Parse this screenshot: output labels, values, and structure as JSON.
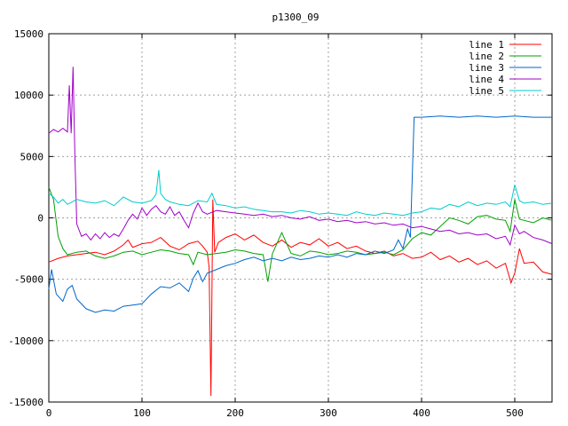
{
  "chart_data": {
    "type": "line",
    "title": "p1300_09",
    "xlabel": "",
    "ylabel": "",
    "xlim": [
      0,
      540
    ],
    "ylim": [
      -15000,
      15000
    ],
    "xticks": [
      0,
      100,
      200,
      300,
      400,
      500
    ],
    "yticks": [
      -15000,
      -10000,
      -5000,
      0,
      5000,
      10000,
      15000
    ],
    "grid": true,
    "legend_position": "top-right",
    "series": [
      {
        "name": "line 1",
        "color": "#ff0000",
        "points": [
          [
            0,
            -3600
          ],
          [
            10,
            -3300
          ],
          [
            20,
            -3100
          ],
          [
            30,
            -3000
          ],
          [
            40,
            -2900
          ],
          [
            50,
            -2800
          ],
          [
            60,
            -3000
          ],
          [
            70,
            -2700
          ],
          [
            80,
            -2200
          ],
          [
            85,
            -1800
          ],
          [
            90,
            -2400
          ],
          [
            100,
            -2100
          ],
          [
            110,
            -2000
          ],
          [
            120,
            -1600
          ],
          [
            130,
            -2300
          ],
          [
            140,
            -2600
          ],
          [
            150,
            -2100
          ],
          [
            160,
            -1900
          ],
          [
            165,
            -2300
          ],
          [
            170,
            -2800
          ],
          [
            172,
            -4000
          ],
          [
            174,
            -14500
          ],
          [
            176,
            1500
          ],
          [
            178,
            -2800
          ],
          [
            182,
            -2000
          ],
          [
            190,
            -1600
          ],
          [
            200,
            -1300
          ],
          [
            210,
            -1800
          ],
          [
            220,
            -1400
          ],
          [
            230,
            -2000
          ],
          [
            240,
            -2300
          ],
          [
            250,
            -1800
          ],
          [
            260,
            -2400
          ],
          [
            270,
            -2000
          ],
          [
            280,
            -2200
          ],
          [
            290,
            -1700
          ],
          [
            300,
            -2300
          ],
          [
            310,
            -2000
          ],
          [
            320,
            -2500
          ],
          [
            330,
            -2300
          ],
          [
            340,
            -2700
          ],
          [
            350,
            -2900
          ],
          [
            360,
            -2700
          ],
          [
            370,
            -3100
          ],
          [
            380,
            -2900
          ],
          [
            390,
            -3300
          ],
          [
            400,
            -3200
          ],
          [
            410,
            -2800
          ],
          [
            420,
            -3400
          ],
          [
            430,
            -3100
          ],
          [
            440,
            -3600
          ],
          [
            450,
            -3300
          ],
          [
            460,
            -3800
          ],
          [
            470,
            -3500
          ],
          [
            480,
            -4100
          ],
          [
            490,
            -3700
          ],
          [
            496,
            -5300
          ],
          [
            500,
            -4500
          ],
          [
            505,
            -2500
          ],
          [
            510,
            -3700
          ],
          [
            520,
            -3600
          ],
          [
            530,
            -4400
          ],
          [
            540,
            -4600
          ]
        ]
      },
      {
        "name": "line 2",
        "color": "#00a000",
        "points": [
          [
            0,
            2500
          ],
          [
            5,
            1500
          ],
          [
            10,
            -1500
          ],
          [
            15,
            -2500
          ],
          [
            20,
            -3000
          ],
          [
            30,
            -2800
          ],
          [
            40,
            -2700
          ],
          [
            50,
            -3100
          ],
          [
            60,
            -3300
          ],
          [
            70,
            -3100
          ],
          [
            80,
            -2800
          ],
          [
            90,
            -2700
          ],
          [
            100,
            -3000
          ],
          [
            110,
            -2800
          ],
          [
            120,
            -2600
          ],
          [
            130,
            -2700
          ],
          [
            140,
            -2900
          ],
          [
            150,
            -3000
          ],
          [
            155,
            -3800
          ],
          [
            160,
            -2800
          ],
          [
            170,
            -3000
          ],
          [
            180,
            -2900
          ],
          [
            190,
            -2800
          ],
          [
            200,
            -2600
          ],
          [
            210,
            -2700
          ],
          [
            220,
            -2900
          ],
          [
            230,
            -3000
          ],
          [
            235,
            -5200
          ],
          [
            240,
            -2900
          ],
          [
            250,
            -1200
          ],
          [
            260,
            -2900
          ],
          [
            270,
            -3100
          ],
          [
            280,
            -2700
          ],
          [
            290,
            -2800
          ],
          [
            300,
            -3000
          ],
          [
            310,
            -2900
          ],
          [
            320,
            -2700
          ],
          [
            330,
            -2800
          ],
          [
            340,
            -3000
          ],
          [
            350,
            -2900
          ],
          [
            360,
            -2800
          ],
          [
            370,
            -3000
          ],
          [
            380,
            -2600
          ],
          [
            390,
            -1700
          ],
          [
            400,
            -1200
          ],
          [
            410,
            -1400
          ],
          [
            420,
            -700
          ],
          [
            430,
            0
          ],
          [
            440,
            -200
          ],
          [
            450,
            -500
          ],
          [
            460,
            100
          ],
          [
            470,
            200
          ],
          [
            480,
            -100
          ],
          [
            490,
            -200
          ],
          [
            495,
            -1100
          ],
          [
            500,
            1500
          ],
          [
            505,
            -100
          ],
          [
            510,
            -200
          ],
          [
            520,
            -400
          ],
          [
            530,
            0
          ],
          [
            540,
            -200
          ]
        ]
      },
      {
        "name": "line 3",
        "color": "#0066cc",
        "points": [
          [
            0,
            -5800
          ],
          [
            3,
            -4200
          ],
          [
            8,
            -6200
          ],
          [
            15,
            -6800
          ],
          [
            20,
            -5800
          ],
          [
            25,
            -5500
          ],
          [
            30,
            -6600
          ],
          [
            40,
            -7400
          ],
          [
            50,
            -7700
          ],
          [
            60,
            -7500
          ],
          [
            70,
            -7600
          ],
          [
            80,
            -7200
          ],
          [
            90,
            -7100
          ],
          [
            100,
            -7000
          ],
          [
            110,
            -6200
          ],
          [
            120,
            -5600
          ],
          [
            130,
            -5700
          ],
          [
            140,
            -5300
          ],
          [
            150,
            -6000
          ],
          [
            155,
            -4900
          ],
          [
            160,
            -4300
          ],
          [
            165,
            -5200
          ],
          [
            170,
            -4500
          ],
          [
            180,
            -4200
          ],
          [
            190,
            -3900
          ],
          [
            200,
            -3700
          ],
          [
            210,
            -3400
          ],
          [
            220,
            -3200
          ],
          [
            230,
            -3500
          ],
          [
            240,
            -3300
          ],
          [
            250,
            -3500
          ],
          [
            260,
            -3200
          ],
          [
            270,
            -3400
          ],
          [
            280,
            -3300
          ],
          [
            290,
            -3100
          ],
          [
            300,
            -3200
          ],
          [
            310,
            -3000
          ],
          [
            320,
            -3200
          ],
          [
            330,
            -2900
          ],
          [
            340,
            -3000
          ],
          [
            350,
            -2700
          ],
          [
            360,
            -2900
          ],
          [
            370,
            -2600
          ],
          [
            375,
            -1800
          ],
          [
            380,
            -2500
          ],
          [
            385,
            -900
          ],
          [
            388,
            -1600
          ],
          [
            392,
            8200
          ],
          [
            400,
            8200
          ],
          [
            420,
            8300
          ],
          [
            440,
            8200
          ],
          [
            460,
            8300
          ],
          [
            480,
            8200
          ],
          [
            500,
            8300
          ],
          [
            520,
            8200
          ],
          [
            540,
            8200
          ]
        ]
      },
      {
        "name": "line 4",
        "color": "#a000c8",
        "points": [
          [
            0,
            6900
          ],
          [
            5,
            7200
          ],
          [
            10,
            7000
          ],
          [
            15,
            7300
          ],
          [
            20,
            7000
          ],
          [
            22,
            10800
          ],
          [
            24,
            6900
          ],
          [
            26,
            12300
          ],
          [
            28,
            5000
          ],
          [
            30,
            -500
          ],
          [
            35,
            -1500
          ],
          [
            40,
            -1300
          ],
          [
            45,
            -1800
          ],
          [
            50,
            -1300
          ],
          [
            55,
            -1700
          ],
          [
            60,
            -1200
          ],
          [
            65,
            -1600
          ],
          [
            70,
            -1300
          ],
          [
            75,
            -1500
          ],
          [
            80,
            -900
          ],
          [
            85,
            -200
          ],
          [
            90,
            300
          ],
          [
            95,
            -100
          ],
          [
            100,
            800
          ],
          [
            105,
            200
          ],
          [
            110,
            700
          ],
          [
            115,
            1000
          ],
          [
            120,
            500
          ],
          [
            125,
            300
          ],
          [
            130,
            900
          ],
          [
            135,
            200
          ],
          [
            140,
            500
          ],
          [
            145,
            -200
          ],
          [
            150,
            -800
          ],
          [
            155,
            400
          ],
          [
            160,
            1200
          ],
          [
            165,
            500
          ],
          [
            170,
            300
          ],
          [
            180,
            600
          ],
          [
            190,
            500
          ],
          [
            200,
            400
          ],
          [
            210,
            300
          ],
          [
            220,
            200
          ],
          [
            230,
            300
          ],
          [
            240,
            100
          ],
          [
            250,
            200
          ],
          [
            260,
            0
          ],
          [
            270,
            -100
          ],
          [
            280,
            100
          ],
          [
            290,
            -200
          ],
          [
            300,
            -100
          ],
          [
            310,
            -300
          ],
          [
            320,
            -200
          ],
          [
            330,
            -400
          ],
          [
            340,
            -300
          ],
          [
            350,
            -500
          ],
          [
            360,
            -400
          ],
          [
            370,
            -600
          ],
          [
            380,
            -500
          ],
          [
            390,
            -800
          ],
          [
            400,
            -700
          ],
          [
            410,
            -900
          ],
          [
            420,
            -1100
          ],
          [
            430,
            -1000
          ],
          [
            440,
            -1300
          ],
          [
            450,
            -1200
          ],
          [
            460,
            -1400
          ],
          [
            470,
            -1300
          ],
          [
            480,
            -1700
          ],
          [
            490,
            -1500
          ],
          [
            495,
            -2200
          ],
          [
            500,
            -600
          ],
          [
            505,
            -1300
          ],
          [
            510,
            -1100
          ],
          [
            520,
            -1600
          ],
          [
            530,
            -1800
          ],
          [
            540,
            -2100
          ]
        ]
      },
      {
        "name": "line 5",
        "color": "#00cccc",
        "points": [
          [
            0,
            2000
          ],
          [
            5,
            1700
          ],
          [
            10,
            1200
          ],
          [
            15,
            1500
          ],
          [
            20,
            1100
          ],
          [
            30,
            1500
          ],
          [
            40,
            1300
          ],
          [
            50,
            1200
          ],
          [
            60,
            1400
          ],
          [
            70,
            1000
          ],
          [
            80,
            1700
          ],
          [
            90,
            1300
          ],
          [
            100,
            1200
          ],
          [
            110,
            1400
          ],
          [
            115,
            1900
          ],
          [
            118,
            3900
          ],
          [
            120,
            2000
          ],
          [
            125,
            1500
          ],
          [
            130,
            1300
          ],
          [
            140,
            1100
          ],
          [
            150,
            1000
          ],
          [
            160,
            1400
          ],
          [
            170,
            1300
          ],
          [
            175,
            2000
          ],
          [
            180,
            1100
          ],
          [
            190,
            1000
          ],
          [
            200,
            800
          ],
          [
            210,
            900
          ],
          [
            220,
            700
          ],
          [
            230,
            600
          ],
          [
            240,
            500
          ],
          [
            250,
            500
          ],
          [
            260,
            400
          ],
          [
            270,
            600
          ],
          [
            280,
            500
          ],
          [
            290,
            300
          ],
          [
            300,
            400
          ],
          [
            310,
            300
          ],
          [
            320,
            200
          ],
          [
            330,
            500
          ],
          [
            340,
            300
          ],
          [
            350,
            200
          ],
          [
            360,
            400
          ],
          [
            370,
            300
          ],
          [
            380,
            200
          ],
          [
            390,
            400
          ],
          [
            400,
            500
          ],
          [
            410,
            800
          ],
          [
            420,
            700
          ],
          [
            430,
            1100
          ],
          [
            440,
            900
          ],
          [
            450,
            1300
          ],
          [
            460,
            1000
          ],
          [
            470,
            1200
          ],
          [
            480,
            1100
          ],
          [
            490,
            1300
          ],
          [
            495,
            900
          ],
          [
            500,
            2700
          ],
          [
            505,
            1400
          ],
          [
            510,
            1200
          ],
          [
            520,
            1300
          ],
          [
            530,
            1100
          ],
          [
            540,
            1200
          ]
        ]
      }
    ]
  }
}
